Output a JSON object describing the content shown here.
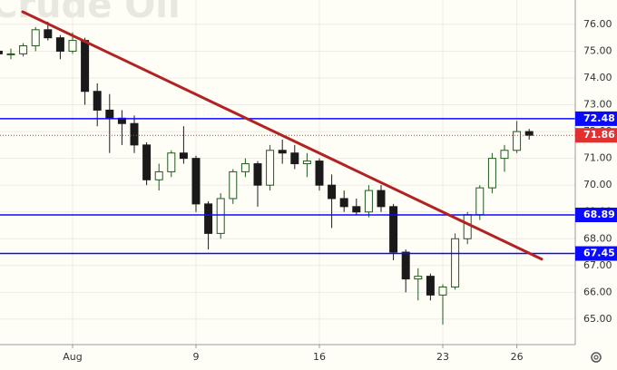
{
  "chart_data": {
    "type": "candlestick",
    "watermark": "Crude Oil",
    "categories": [
      null,
      null,
      null,
      null,
      null,
      null,
      "Aug",
      null,
      null,
      null,
      null,
      null,
      null,
      null,
      null,
      null,
      "9",
      null,
      null,
      null,
      null,
      null,
      null,
      null,
      null,
      null,
      "16",
      null,
      null,
      null,
      null,
      null,
      null,
      null,
      null,
      null,
      "23",
      null,
      null,
      null,
      null,
      null,
      "26",
      null
    ],
    "ohlc": [
      [
        75.0,
        75.2,
        74.7,
        74.9
      ],
      [
        74.9,
        75.1,
        74.7,
        74.9
      ],
      [
        74.9,
        75.3,
        74.8,
        75.2
      ],
      [
        75.2,
        75.9,
        75.0,
        75.8
      ],
      [
        75.8,
        76.1,
        75.4,
        75.5
      ],
      [
        75.5,
        75.6,
        74.7,
        75.0
      ],
      [
        75.0,
        75.7,
        74.9,
        75.4
      ],
      [
        75.4,
        75.5,
        73.0,
        73.5
      ],
      [
        73.5,
        73.8,
        72.2,
        72.8
      ],
      [
        72.8,
        73.4,
        71.2,
        72.5
      ],
      [
        72.5,
        72.8,
        71.5,
        72.3
      ],
      [
        72.3,
        72.6,
        71.2,
        71.5
      ],
      [
        71.5,
        71.6,
        70.0,
        70.2
      ],
      [
        70.2,
        70.8,
        69.8,
        70.5
      ],
      [
        70.5,
        71.3,
        70.3,
        71.2
      ],
      [
        71.2,
        72.2,
        70.8,
        71.0
      ],
      [
        71.0,
        71.1,
        69.0,
        69.3
      ],
      [
        69.3,
        69.4,
        67.6,
        68.2
      ],
      [
        68.2,
        69.7,
        68.0,
        69.5
      ],
      [
        69.5,
        70.6,
        69.3,
        70.5
      ],
      [
        70.5,
        71.0,
        70.3,
        70.8
      ],
      [
        70.8,
        70.9,
        69.2,
        70.0
      ],
      [
        70.0,
        71.5,
        69.8,
        71.3
      ],
      [
        71.3,
        71.7,
        70.8,
        71.2
      ],
      [
        71.2,
        71.5,
        70.6,
        70.8
      ],
      [
        70.8,
        71.2,
        70.3,
        70.9
      ],
      [
        70.9,
        71.0,
        69.8,
        70.0
      ],
      [
        70.0,
        70.4,
        68.4,
        69.5
      ],
      [
        69.5,
        69.8,
        69.0,
        69.2
      ],
      [
        69.2,
        69.5,
        68.9,
        69.0
      ],
      [
        69.0,
        70.0,
        68.8,
        69.8
      ],
      [
        69.8,
        70.0,
        69.0,
        69.2
      ],
      [
        69.2,
        69.3,
        67.2,
        67.5
      ],
      [
        67.5,
        67.6,
        66.0,
        66.5
      ],
      [
        66.5,
        66.9,
        65.7,
        66.6
      ],
      [
        66.6,
        66.7,
        65.7,
        65.9
      ],
      [
        65.9,
        66.3,
        64.8,
        66.2
      ],
      [
        66.2,
        68.2,
        66.1,
        68.0
      ],
      [
        68.0,
        69.0,
        67.8,
        68.9
      ],
      [
        68.9,
        70.0,
        68.7,
        69.9
      ],
      [
        69.9,
        71.2,
        69.7,
        71.0
      ],
      [
        71.0,
        71.5,
        70.5,
        71.3
      ],
      [
        71.3,
        72.4,
        71.2,
        72.0
      ],
      [
        72.0,
        72.1,
        71.7,
        71.86
      ]
    ],
    "up_color": "#1e5a1e",
    "down_color": "#1a1a1a",
    "ylim": [
      64.05,
      76.91
    ],
    "yticks": [
      {
        "value": 65,
        "label": "65.00"
      },
      {
        "value": 66,
        "label": "66.00"
      },
      {
        "value": 67,
        "label": "67.00"
      },
      {
        "value": 68,
        "label": "68.00"
      },
      {
        "value": 69,
        "label": "69.00"
      },
      {
        "value": 70,
        "label": "70.00"
      },
      {
        "value": 71,
        "label": "71.00"
      },
      {
        "value": 72,
        "label": "72.00"
      },
      {
        "value": 73,
        "label": "73.00"
      },
      {
        "value": 74,
        "label": "74.00"
      },
      {
        "value": 75,
        "label": "75.00"
      },
      {
        "value": 76,
        "label": "76.00"
      }
    ],
    "grid": true,
    "levels": [
      72.48,
      68.89,
      67.45
    ],
    "level_color": "#0a0aff",
    "last_price": 71.86,
    "last_price_color": "#e03030",
    "trendline": [
      76.47,
      67.24
    ],
    "trendline_color": "#b22222"
  }
}
